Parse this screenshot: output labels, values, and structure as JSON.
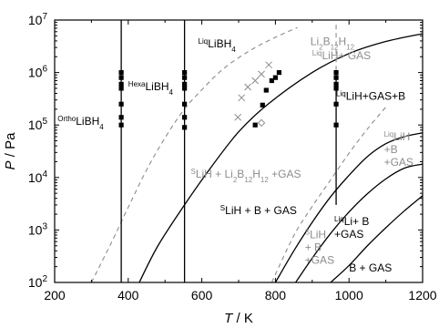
{
  "chart_data": {
    "type": "scatter",
    "title": "",
    "xlabel": "T",
    "xlabel_unit": " / K",
    "ylabel": "P",
    "ylabel_unit": " / Pa",
    "xlim": [
      200,
      1200
    ],
    "ylim_log10": [
      2,
      7
    ],
    "yscale": "log",
    "grid": false,
    "x_ticks": [
      "200",
      "400",
      "600",
      "800",
      "1000",
      "1200"
    ],
    "y_tick_base": "10",
    "y_tick_exponents": [
      "2",
      "3",
      "4",
      "5",
      "6",
      "7"
    ],
    "vertical_lines_K": [
      381,
      553,
      965
    ],
    "solid_curves": [
      {
        "points": [
          [
            430,
            100
          ],
          [
            480,
            490
          ],
          [
            550,
            2800
          ],
          [
            620,
            14000
          ],
          [
            700,
            74000
          ],
          [
            780,
            250000
          ],
          [
            900,
            1000000
          ],
          [
            1000,
            2300000
          ],
          [
            1100,
            3900000
          ],
          [
            1200,
            5500000
          ]
        ]
      },
      {
        "points": [
          [
            800,
            100
          ],
          [
            850,
            400
          ],
          [
            900,
            1400
          ],
          [
            950,
            4300
          ],
          [
            1000,
            11000
          ],
          [
            1050,
            25000
          ],
          [
            1100,
            44000
          ],
          [
            1150,
            60000
          ],
          [
            1200,
            71000
          ]
        ]
      },
      {
        "points": [
          [
            855,
            100
          ],
          [
            900,
            290
          ],
          [
            950,
            860
          ],
          [
            1000,
            2200
          ],
          [
            1050,
            4900
          ],
          [
            1100,
            9400
          ],
          [
            1150,
            15000
          ],
          [
            1200,
            18000
          ]
        ]
      },
      {
        "points": [
          [
            950,
            100
          ],
          [
            1000,
            210
          ],
          [
            1050,
            500
          ],
          [
            1100,
            1100
          ],
          [
            1150,
            2300
          ],
          [
            1200,
            4500
          ]
        ]
      }
    ],
    "dashed_curves": [
      {
        "points": [
          [
            300,
            100
          ],
          [
            350,
            500
          ],
          [
            400,
            2700
          ],
          [
            450,
            14000
          ],
          [
            500,
            57000
          ],
          [
            550,
            190000
          ],
          [
            600,
            470000
          ],
          [
            660,
            1200000
          ],
          [
            730,
            2600000
          ],
          [
            800,
            4700000
          ],
          [
            860,
            7200000
          ]
        ]
      },
      {
        "points": [
          [
            790,
            100
          ],
          [
            850,
            780
          ],
          [
            900,
            2800
          ],
          [
            950,
            9000
          ],
          [
            1000,
            29000
          ],
          [
            1050,
            84000
          ],
          [
            1100,
            220000
          ]
        ]
      },
      {
        "points": [
          [
            965,
            1100000
          ],
          [
            965,
            9000000
          ]
        ]
      }
    ],
    "series": [
      {
        "marker": "square",
        "points": [
          [
            381,
            100000
          ],
          [
            381,
            140000
          ],
          [
            381,
            250000
          ],
          [
            381,
            500000
          ],
          [
            381,
            600000
          ],
          [
            381,
            800000
          ],
          [
            381,
            1000000
          ],
          [
            553,
            90000
          ],
          [
            553,
            140000
          ],
          [
            553,
            250000
          ],
          [
            553,
            500000
          ],
          [
            553,
            600000
          ],
          [
            553,
            800000
          ],
          [
            553,
            1000000
          ],
          [
            745,
            100000
          ],
          [
            765,
            240000
          ],
          [
            775,
            460000
          ],
          [
            790,
            700000
          ],
          [
            800,
            800000
          ],
          [
            810,
            1000000
          ],
          [
            965,
            100000
          ],
          [
            965,
            250000
          ],
          [
            965,
            500000
          ],
          [
            965,
            600000
          ],
          [
            965,
            800000
          ],
          [
            965,
            1000000
          ]
        ]
      },
      {
        "marker": "cross",
        "points": [
          [
            698,
            140000
          ],
          [
            708,
            330000
          ],
          [
            725,
            530000
          ],
          [
            745,
            700000
          ],
          [
            762,
            930000
          ],
          [
            782,
            1400000
          ]
        ]
      },
      {
        "marker": "diamond",
        "points": [
          [
            762,
            110000
          ]
        ]
      }
    ],
    "annotations": [
      {
        "id": "ortho",
        "sup": "Ortho",
        "text": "LiBH",
        "sub": "4",
        "x": 208,
        "p": 100000,
        "color": "#000000"
      },
      {
        "id": "hexa",
        "sup": "Hexa",
        "text": "LiBH",
        "sub": "4",
        "x": 400,
        "p": 460000,
        "color": "#000000"
      },
      {
        "id": "liq-libh4",
        "sup": "Liq",
        "text": "LiBH",
        "sub": "4",
        "x": 590,
        "p": 3000000,
        "color": "#000000"
      },
      {
        "id": "li2b12h12",
        "text": "Li2B12H12",
        "x": 895,
        "p": 3300000,
        "color": "#8c8c8c"
      },
      {
        "id": "liq-lih-gas-1",
        "sup": "Liq",
        "text": "LiH+ GAS",
        "x": 900,
        "p": 1800000,
        "color": "#8c8c8c"
      },
      {
        "id": "liq-lih-gas-b",
        "sup": "Liq",
        "text": "LiH+GAS+B",
        "x": 965,
        "p": 300000,
        "color": "#000000"
      },
      {
        "id": "s-lih-li2b12h12",
        "sup": "S",
        "text": "LiH + Li2B12H12 +GAS",
        "x": 570,
        "p": 10000,
        "color": "#8c8c8c"
      },
      {
        "id": "s-lih-b-gas",
        "sup": "S",
        "text": "LiH + B + GAS",
        "x": 650,
        "p": 2000,
        "color": "#000000"
      },
      {
        "id": "liq-lih-b-gas-gray",
        "lines": [
          "LiqLiH",
          "+B",
          "+GAS"
        ],
        "x": 1095,
        "p": 51000,
        "color": "#8c8c8c"
      },
      {
        "id": "liq-li-b-gas",
        "lines": [
          "LiqLi+ B",
          "+GAS"
        ],
        "x": 960,
        "p": 1250,
        "color": "#000000"
      },
      {
        "id": "s-lih-b-gas-gray",
        "lines": [
          "SLiH",
          "+ B",
          "+GAS"
        ],
        "x": 880,
        "p": 700,
        "color": "#8c8c8c"
      },
      {
        "id": "b-gas",
        "text": "B + GAS",
        "x": 1000,
        "p": 160,
        "color": "#000000"
      }
    ]
  }
}
